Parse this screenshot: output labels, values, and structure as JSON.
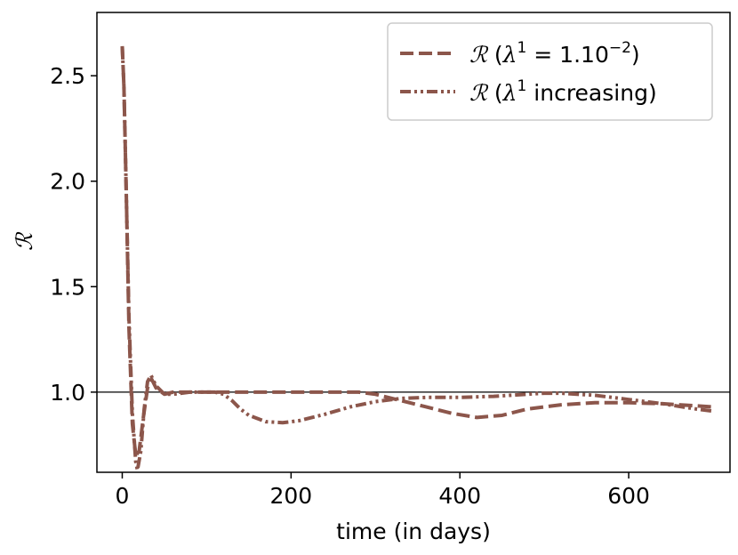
{
  "chart_data": {
    "type": "line",
    "xlabel": "time (in days)",
    "ylabel": "ℛ",
    "xlim": [
      -30,
      720
    ],
    "ylim": [
      0.62,
      2.8
    ],
    "xticks": [
      0,
      200,
      400,
      600
    ],
    "yticks": [
      1.0,
      1.5,
      2.0,
      2.5
    ],
    "xtick_labels": [
      "0",
      "200",
      "400",
      "600"
    ],
    "ytick_labels": [
      "1.0",
      "1.5",
      "2.0",
      "2.5"
    ],
    "reference_line": {
      "y": 1.0,
      "color": "#000000"
    },
    "grid": false,
    "legend_position": "top-right",
    "colors": {
      "series": "#8c564b"
    },
    "series": [
      {
        "name": "ℛ (λ¹ = 1.10⁻²)",
        "legend": {
          "symbol": "ℛ",
          "open": " (",
          "lambda": "λ",
          "sup": "1",
          "eq": " = 1.10",
          "exp": "−2",
          "close": ")"
        },
        "dash": "dashed",
        "x": [
          0,
          2,
          5,
          8,
          12,
          16,
          20,
          25,
          30,
          35,
          40,
          50,
          60,
          80,
          100,
          150,
          200,
          250,
          280,
          300,
          330,
          360,
          390,
          420,
          450,
          480,
          520,
          560,
          600,
          640,
          680,
          700
        ],
        "y": [
          2.64,
          2.45,
          1.9,
          1.3,
          0.85,
          0.7,
          0.72,
          0.88,
          1.02,
          1.06,
          1.02,
          0.99,
          1.0,
          1.0,
          1.0,
          1.0,
          1.0,
          1.0,
          1.0,
          0.99,
          0.96,
          0.93,
          0.9,
          0.88,
          0.89,
          0.92,
          0.94,
          0.95,
          0.95,
          0.945,
          0.935,
          0.93
        ]
      },
      {
        "name": "ℛ (λ¹ increasing)",
        "legend": {
          "symbol": "ℛ",
          "open": " (",
          "lambda": "λ",
          "sup": "1",
          "rest": " increasing)"
        },
        "dash": "dashdotdot",
        "x": [
          0,
          2,
          5,
          8,
          12,
          16,
          18,
          22,
          26,
          30,
          34,
          40,
          50,
          60,
          80,
          100,
          110,
          120,
          130,
          140,
          150,
          170,
          190,
          210,
          240,
          270,
          300,
          330,
          360,
          400,
          440,
          480,
          500,
          520,
          560,
          600,
          640,
          680,
          700
        ],
        "y": [
          2.64,
          2.45,
          1.9,
          1.35,
          0.9,
          0.67,
          0.63,
          0.72,
          0.92,
          1.05,
          1.08,
          1.03,
          0.99,
          0.99,
          1.0,
          1.0,
          1.0,
          0.99,
          0.96,
          0.92,
          0.89,
          0.86,
          0.855,
          0.865,
          0.895,
          0.93,
          0.955,
          0.97,
          0.975,
          0.975,
          0.98,
          0.99,
          0.995,
          0.995,
          0.985,
          0.965,
          0.945,
          0.92,
          0.91
        ]
      }
    ]
  }
}
